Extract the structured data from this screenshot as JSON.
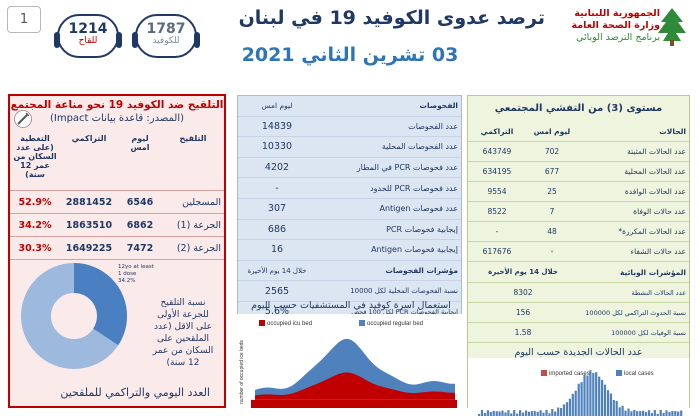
{
  "header": {
    "page_number": "1",
    "hotline_cases": {
      "number": "1787",
      "label": "للكوفيد"
    },
    "hotline_vaccine": {
      "number": "1214",
      "label": "للقاح"
    },
    "title": "ترصد عدوى الكوفيد 19 في لبنان",
    "date": "03 تشرين الثاني 2021",
    "ministry": {
      "line1": "الجمهورية اللبنانية",
      "line2": "وزارة الصحة العامة",
      "line3": "برنامج الترصد الوبائي"
    }
  },
  "community": {
    "title": "مستوى (3) من التفشي المجتمعي",
    "headers": {
      "cases": "الحالات",
      "daily": "ليوم امس",
      "cumulative": "التراكمي"
    },
    "rows": [
      {
        "label": "عدد الحالات المثبتة",
        "daily": "702",
        "cumulative": "643749"
      },
      {
        "label": "عدد الحالات المحلية",
        "daily": "677",
        "cumulative": "634195"
      },
      {
        "label": "عدد الحالات الوافدة",
        "daily": "25",
        "cumulative": "9554"
      },
      {
        "label": "عدد حالات الوفاة",
        "daily": "7",
        "cumulative": "8522"
      },
      {
        "label": "عدد الحالات المكررة*",
        "daily": "48",
        "cumulative": "-"
      },
      {
        "label": "عدد حالات الشفاء",
        "daily": "-",
        "cumulative": "617676"
      }
    ],
    "indicators_header": {
      "label": "المؤشرات الوبائية",
      "value": "خلال 14 يوم الأخيرة"
    },
    "indicators": [
      {
        "label": "عدد الحالات النشطة",
        "value": "8302"
      },
      {
        "label": "نسبة الحدوث التراكمي لكل 100000",
        "value": "156"
      },
      {
        "label": "نسبة الوفيات لكل 100000",
        "value": "1.58"
      }
    ]
  },
  "tests": {
    "header": {
      "label": "الفحوصات",
      "value": "ليوم امس"
    },
    "rows": [
      {
        "label": "عدد الفحوصات",
        "value": "14839"
      },
      {
        "label": "عدد الفحوصات المحلية",
        "value": "10330"
      },
      {
        "label": "عدد فحوصات PCR في المطار",
        "value": "4202"
      },
      {
        "label": "عدد فحوصات PCR للحدود",
        "value": "-"
      },
      {
        "label": "عدد فحوصات Antigen",
        "value": "307"
      },
      {
        "label": "إيجابية فحوصات PCR",
        "value": "686"
      },
      {
        "label": "إيجابية فحوصات Antigen",
        "value": "16"
      }
    ],
    "indicators_header": {
      "label": "مؤشرات الفحوصات",
      "value": "خلال 14 يوم الأخيرة"
    },
    "indicators": [
      {
        "label": "نسبة الفحوصات المحلية لكل 10000",
        "value": "2565"
      },
      {
        "label": "إيجابية الفحوصات PCR لكل 100 فحص",
        "value": "5.6%"
      }
    ]
  },
  "vaccination": {
    "title": "التلقيح ضد الكوفيد 19 نحو مناعة المجتمع",
    "source": "(المصدر: قاعدة بيانات Impact)",
    "headers": {
      "vaccine": "التلقيح",
      "daily": "ليوم امس",
      "cumulative": "التراكمي",
      "coverage": "التغطية (على عدد السكان من عمر 12 سنة)"
    },
    "rows": [
      {
        "label": "المسجلين",
        "daily": "6546",
        "cumulative": "2881452",
        "coverage": "52.9%"
      },
      {
        "label": "الجرعة (1)",
        "daily": "6862",
        "cumulative": "1863510",
        "coverage": "34.2%"
      },
      {
        "label": "الجرعة (2)",
        "daily": "7472",
        "cumulative": "1649225",
        "coverage": "30.3%"
      }
    ],
    "donut_label": "12yo at least 1 dose 34.2%",
    "donut_value": 34.2,
    "donut_caption": "نسبة التلقيح للجرعة الأولى على الاقل (عدد الملقحين على السكان من عمر 12 سنة)",
    "bottom_caption": "العدد اليومي والتراكمي للملقحين"
  },
  "hospital_chart": {
    "title": "استعمال اسرة كوفيد في المستشفيات حسب اليوم",
    "legend": [
      "occupied icu bed",
      "occupied regular bed"
    ],
    "ylabel": "number of occupied ice beds",
    "colors": {
      "icu": "#c00000",
      "regular": "#4f81bd"
    }
  },
  "cases_chart": {
    "title": "عدد الحالات الجديدة حسب اليوم",
    "legend": [
      "imported cases",
      "local cases"
    ],
    "colors": {
      "imported": "#c0504d",
      "local": "#4f81bd"
    }
  }
}
